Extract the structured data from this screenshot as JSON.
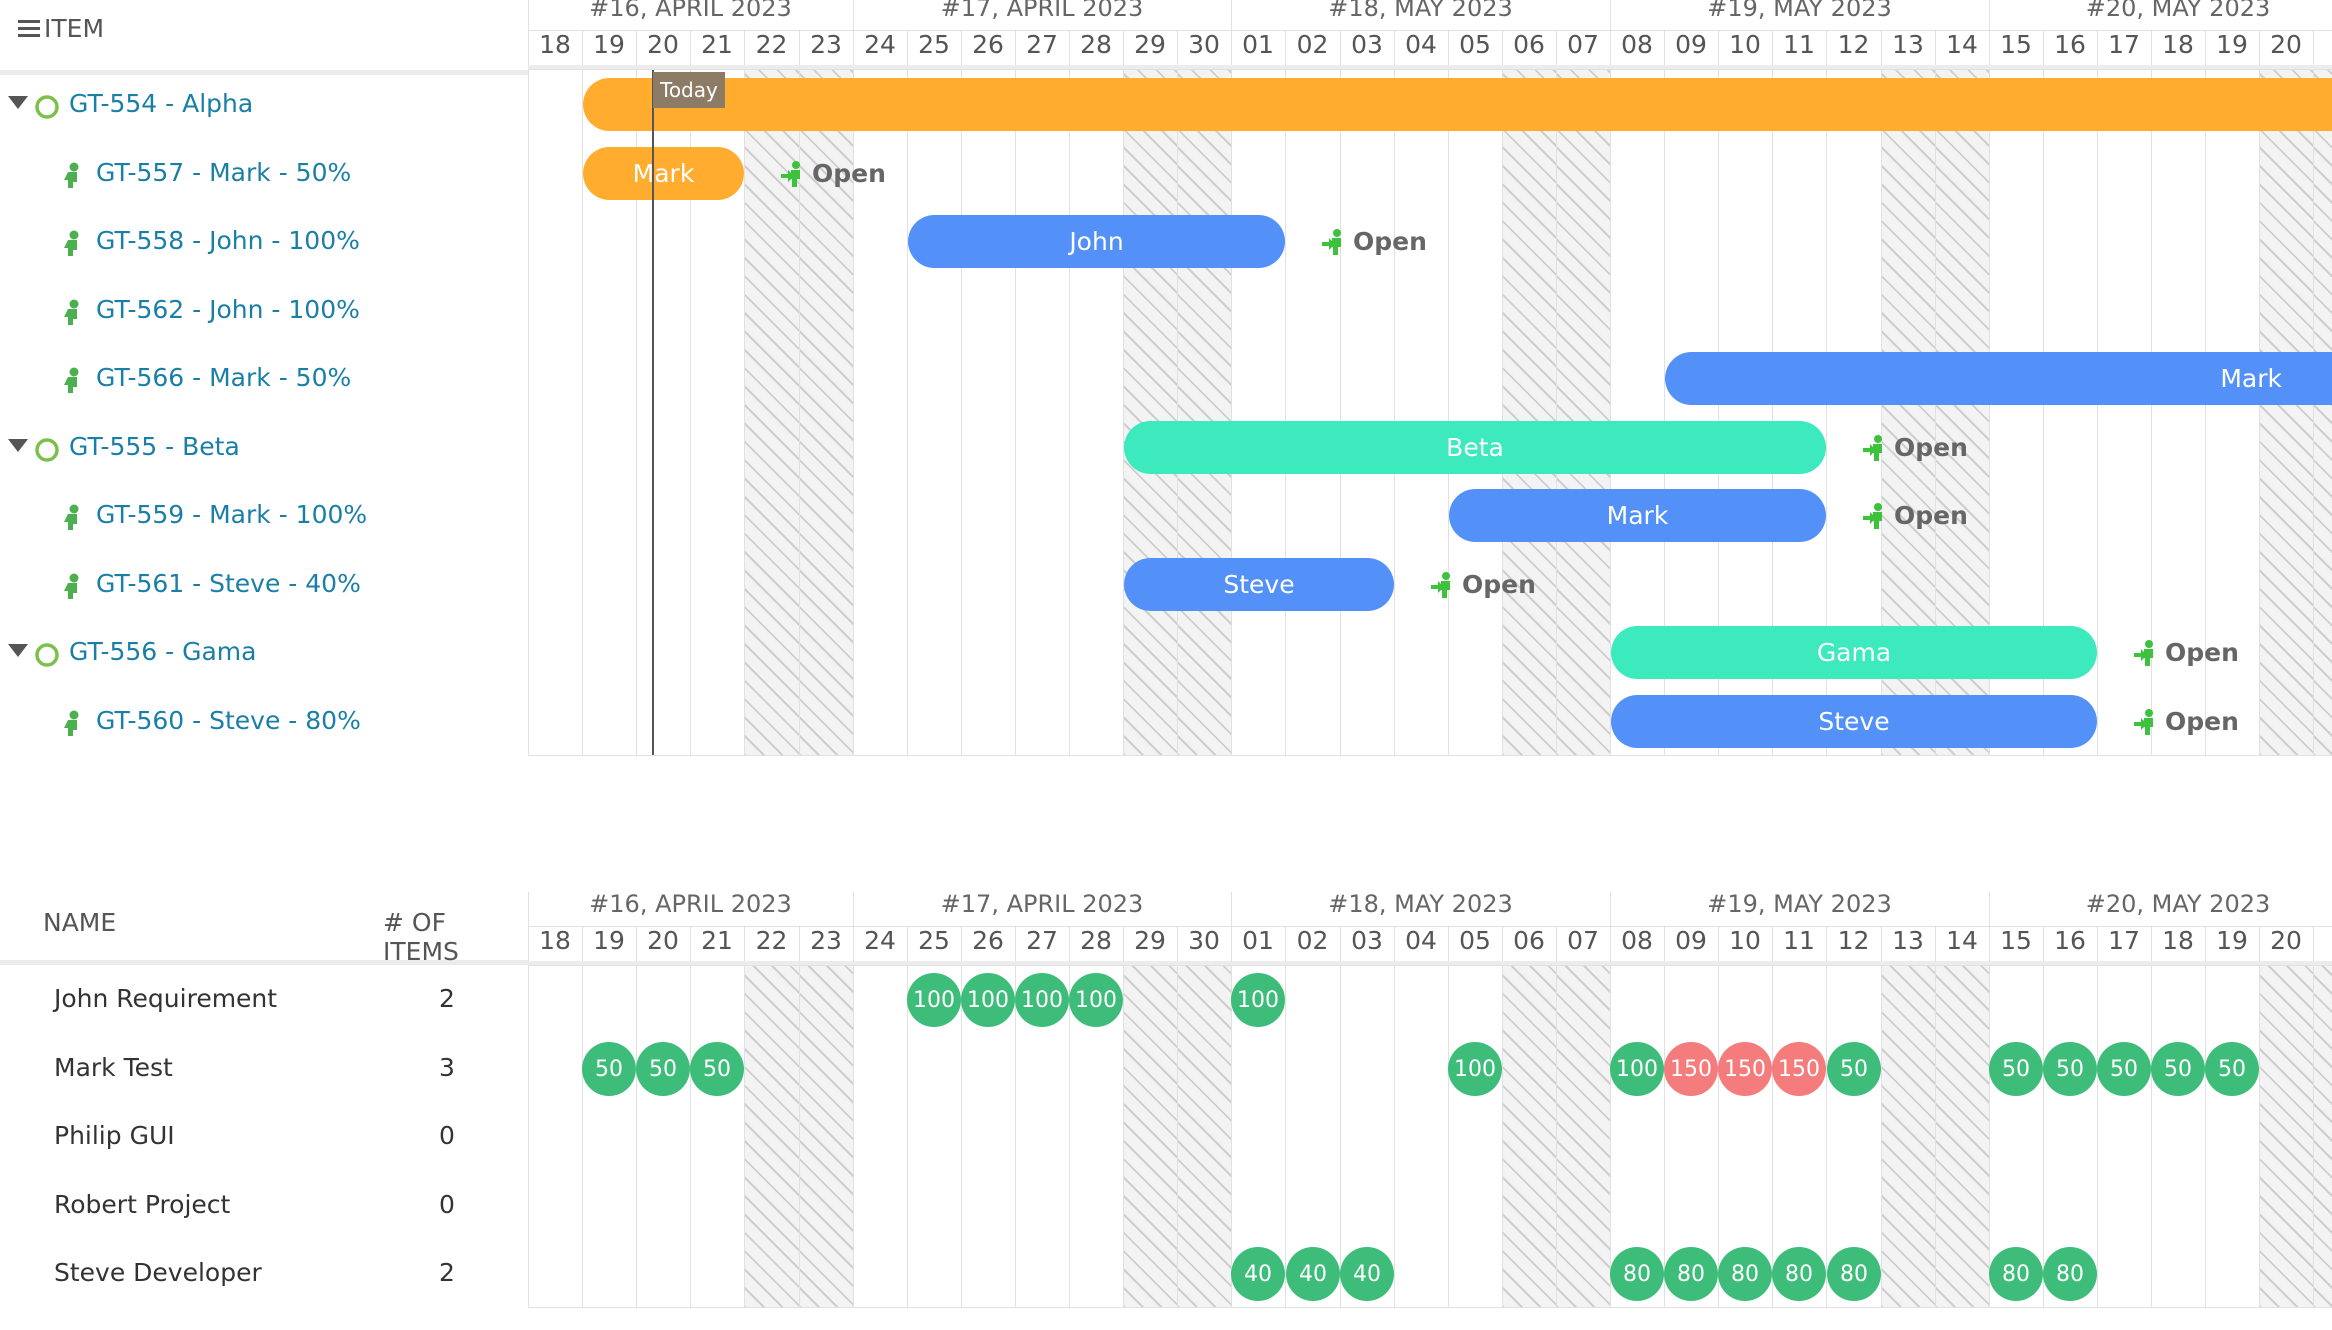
{
  "top_panel": {
    "menu_icon": "hamburger-icon",
    "item_header": "ITEM",
    "today_label": "Today",
    "weeks": [
      {
        "label": "#16, APRIL 2023"
      },
      {
        "label": "#17, APRIL 2023"
      },
      {
        "label": "#18, MAY 2023"
      },
      {
        "label": "#19, MAY 2023"
      },
      {
        "label": "#20, MAY 2023"
      }
    ],
    "days": [
      "18",
      "19",
      "20",
      "21",
      "22",
      "23",
      "24",
      "25",
      "26",
      "27",
      "28",
      "29",
      "30",
      "01",
      "02",
      "03",
      "04",
      "05",
      "06",
      "07",
      "08",
      "09",
      "10",
      "11",
      "12",
      "13",
      "14",
      "15",
      "16",
      "17",
      "18",
      "19",
      "20",
      "2"
    ],
    "tree": [
      {
        "label": "GT-554 - Alpha",
        "type": "group",
        "bar": {
          "label": "",
          "start": 1,
          "end": 34,
          "color": "#ffac2f"
        },
        "status": ""
      },
      {
        "label": "GT-557 - Mark - 50%",
        "type": "task",
        "bar": {
          "label": "Mark",
          "start": 1,
          "end": 4,
          "color": "#ffac2f"
        },
        "status": "Open"
      },
      {
        "label": "GT-558 - John - 100%",
        "type": "task",
        "bar": {
          "label": "John",
          "start": 7,
          "end": 14,
          "color": "#5391f9"
        },
        "status": "Open"
      },
      {
        "label": "GT-562 - John - 100%",
        "type": "task",
        "bar": null,
        "status": ""
      },
      {
        "label": "GT-566 - Mark - 50%",
        "type": "task",
        "bar": {
          "label": "Mark",
          "start": 21,
          "end": 34,
          "color": "#5391f9"
        },
        "status": ""
      },
      {
        "label": "GT-555 - Beta",
        "type": "group",
        "bar": {
          "label": "Beta",
          "start": 11,
          "end": 24,
          "color": "#3ceabd"
        },
        "status": "Open"
      },
      {
        "label": "GT-559 - Mark - 100%",
        "type": "task",
        "bar": {
          "label": "Mark",
          "start": 17,
          "end": 24,
          "color": "#5391f9"
        },
        "status": "Open"
      },
      {
        "label": "GT-561 - Steve - 40%",
        "type": "task",
        "bar": {
          "label": "Steve",
          "start": 11,
          "end": 16,
          "color": "#5391f9"
        },
        "status": "Open"
      },
      {
        "label": "GT-556 - Gama",
        "type": "group",
        "bar": {
          "label": "Gama",
          "start": 20,
          "end": 29,
          "color": "#3ceabd"
        },
        "status": "Open"
      },
      {
        "label": "GT-560 - Steve - 80%",
        "type": "task",
        "bar": {
          "label": "Steve",
          "start": 20,
          "end": 29,
          "color": "#5391f9"
        },
        "status": "Open"
      }
    ]
  },
  "bottom_panel": {
    "name_header": "NAME",
    "count_header": "# OF ITEMS",
    "resources": [
      {
        "name": "John Requirement",
        "count": "2",
        "loads": [
          [
            "7",
            "100"
          ],
          [
            "8",
            "100"
          ],
          [
            "9",
            "100"
          ],
          [
            "10",
            "100"
          ],
          [
            "13",
            "100"
          ]
        ]
      },
      {
        "name": "Mark Test",
        "count": "3",
        "loads": [
          [
            "1",
            "50"
          ],
          [
            "2",
            "50"
          ],
          [
            "3",
            "50"
          ],
          [
            "17",
            "100"
          ],
          [
            "20",
            "100"
          ],
          [
            "21",
            "150"
          ],
          [
            "22",
            "150"
          ],
          [
            "23",
            "150"
          ],
          [
            "24",
            "50"
          ],
          [
            "27",
            "50"
          ],
          [
            "28",
            "50"
          ],
          [
            "29",
            "50"
          ],
          [
            "30",
            "50"
          ],
          [
            "31",
            "50"
          ]
        ]
      },
      {
        "name": "Philip GUI",
        "count": "0",
        "loads": []
      },
      {
        "name": "Robert Project",
        "count": "0",
        "loads": []
      },
      {
        "name": "Steve Developer",
        "count": "2",
        "loads": [
          [
            "13",
            "40"
          ],
          [
            "14",
            "40"
          ],
          [
            "15",
            "40"
          ],
          [
            "20",
            "80"
          ],
          [
            "21",
            "80"
          ],
          [
            "22",
            "80"
          ],
          [
            "23",
            "80"
          ],
          [
            "24",
            "80"
          ],
          [
            "27",
            "80"
          ],
          [
            "28",
            "80"
          ]
        ]
      }
    ]
  },
  "colors": {
    "normal_load": "#3ebd7a",
    "over_load": "#f47c7c",
    "task_icon": "#4caf50",
    "group_icon": "#7cc04b"
  }
}
